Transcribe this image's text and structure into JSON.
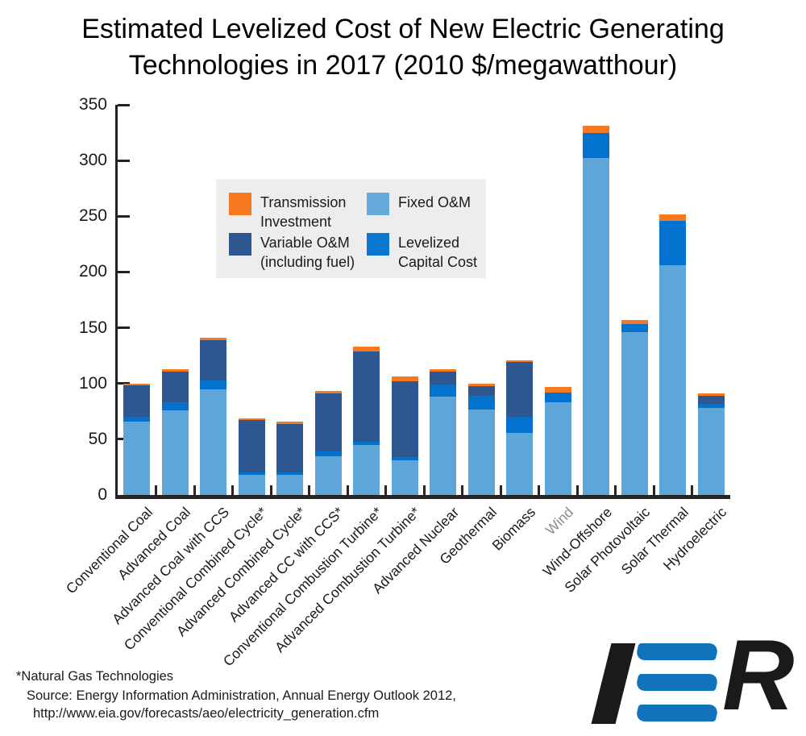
{
  "title": {
    "line1": "Estimated Levelized Cost of New Electric Generating",
    "line2": "Technologies in 2017 (2010 $/megawatthour)"
  },
  "legend": {
    "background": "#EDEDED",
    "items": [
      {
        "label": "Transmission Investment",
        "color": "#F6791F"
      },
      {
        "label": "Fixed O&M",
        "color": "#66ABDC"
      },
      {
        "label": "Variable O&M (including fuel)",
        "color": "#2E5690"
      },
      {
        "label": "Levelized Capital Cost",
        "color": "#0B76D0"
      }
    ]
  },
  "chart_data": {
    "type": "bar",
    "subtype": "stacked-bar",
    "title": "Estimated Levelized Cost of New Electric Generating Technologies in 2017 (2010 $/megawatthour)",
    "xlabel": "",
    "ylabel": "2010 $/megawatthour",
    "ylim": [
      0,
      350
    ],
    "yticks": [
      0,
      50,
      100,
      150,
      200,
      250,
      300,
      350
    ],
    "grid": false,
    "legend_position": "upper-left-inside",
    "categories": [
      "Conventional Coal",
      "Advanced Coal",
      "Advanced Coal with CCS",
      "Conventional Combined Cycle*",
      "Advanced Combined Cycle*",
      "Advanced CC with CCS*",
      "Conventional Combustion Turbine*",
      "Advanced Combustion Turbine*",
      "Advanced Nuclear",
      "Geothermal",
      "Biomass",
      "Wind",
      "Wind-Offshore",
      "Solar Photovoltaic",
      "Solar Thermal",
      "Hydroelectric"
    ],
    "stack_order_bottom_to_top": [
      "Fixed O&M",
      "Levelized Capital Cost",
      "Variable O&M (including fuel)",
      "Transmission Investment"
    ],
    "series": [
      {
        "name": "Fixed O&M",
        "color": "#5EA6D8",
        "values": [
          66,
          76,
          95,
          18,
          18,
          35,
          45,
          31,
          88,
          77,
          56,
          83,
          302,
          146,
          206,
          78
        ]
      },
      {
        "name": "Levelized Capital Cost",
        "color": "#0371CE",
        "values": [
          4,
          7,
          8,
          2,
          2,
          4,
          3,
          3,
          11,
          12,
          14,
          9,
          23,
          7,
          40,
          4
        ]
      },
      {
        "name": "Variable O&M (including fuel)",
        "color": "#2E5690",
        "values": [
          28,
          28,
          36,
          47,
          44,
          52,
          81,
          68,
          12,
          9,
          49,
          0,
          0,
          0,
          0,
          7
        ]
      },
      {
        "name": "Transmission Investment",
        "color": "#F6791F",
        "values": [
          2,
          2,
          2,
          2,
          2,
          2,
          4,
          4,
          2,
          2,
          2,
          5,
          6,
          4,
          6,
          2
        ]
      }
    ],
    "totals": [
      100,
      113,
      141,
      69,
      66,
      93,
      133,
      106,
      113,
      100,
      121,
      97,
      331,
      157,
      252,
      91
    ],
    "muted_category_label": "Wind",
    "muted_category_color": "#8C8C8C"
  },
  "footer": {
    "note": "*Natural Gas Technologies",
    "source_line1": "Source: Energy Information Administration, Annual Energy Outlook 2012,",
    "source_line2": "http://www.eia.gov/forecasts/aeo/electricity_generation.cfm"
  },
  "logo": {
    "name": "IER",
    "letter_i": "I",
    "letter_r": "R",
    "blue": "#1273BD",
    "black": "#1A1A1A"
  }
}
